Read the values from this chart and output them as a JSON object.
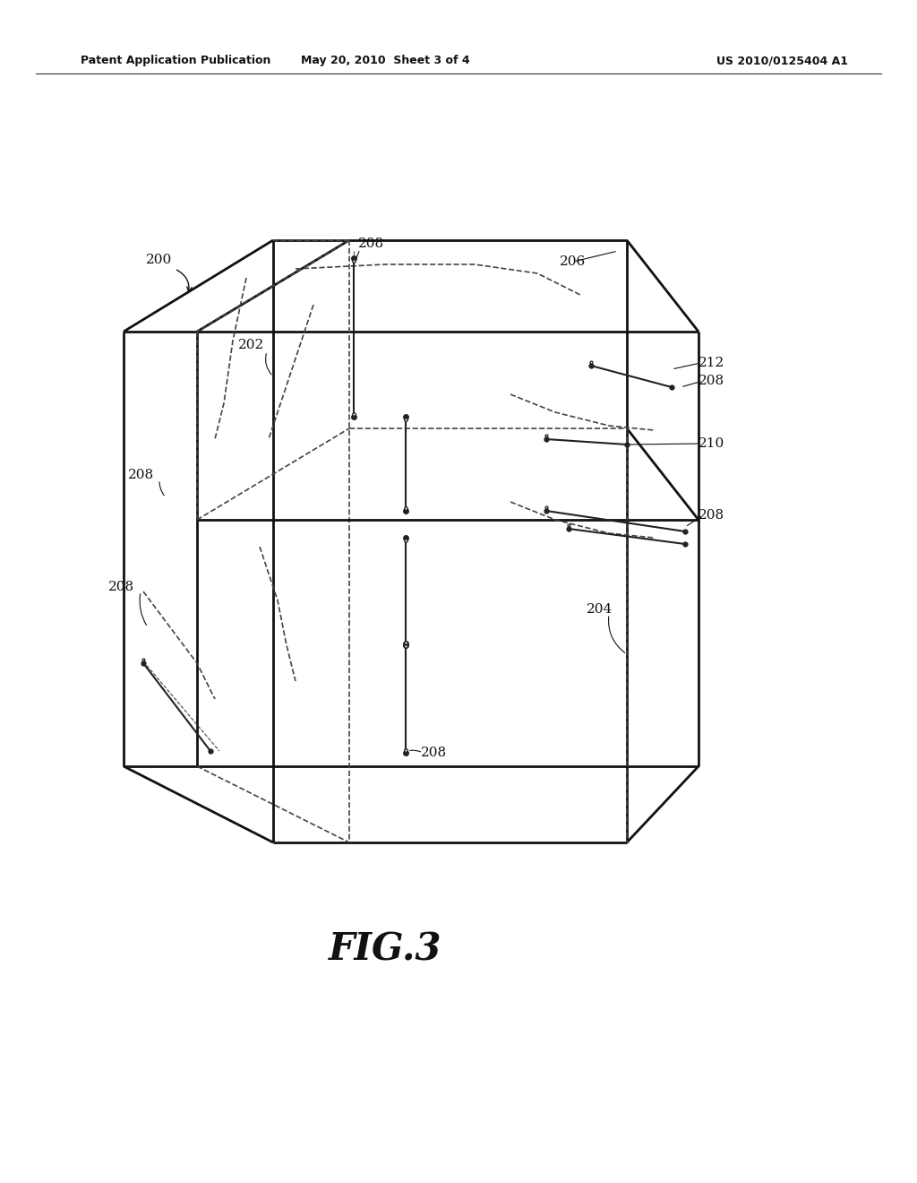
{
  "bg_color": "#ffffff",
  "header_left": "Patent Application Publication",
  "header_center": "May 20, 2010  Sheet 3 of 4",
  "header_right": "US 2010/0125404 A1",
  "fig_label": "FIG.3",
  "line_color": "#111111",
  "dashed_color": "#444444",
  "thick_lw": 2.0,
  "dashed_lw": 1.2,
  "strut_lw": 1.5,
  "label_fontsize": 11,
  "header_fontsize": 9
}
